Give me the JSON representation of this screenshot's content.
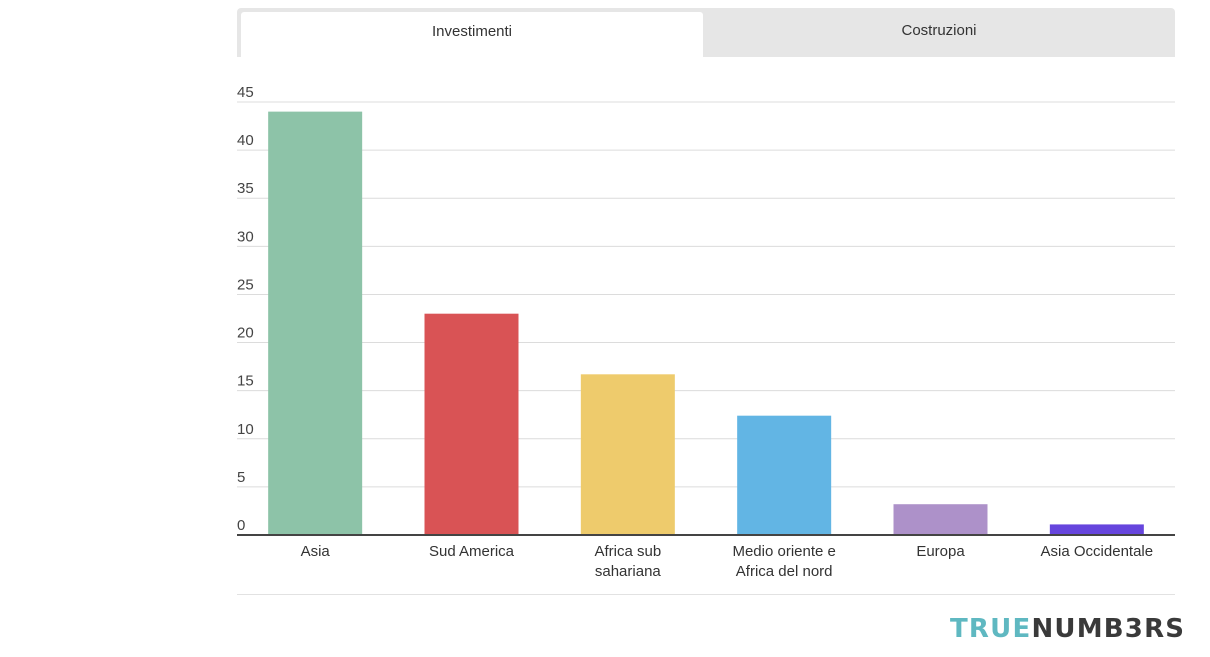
{
  "tabs": [
    {
      "label": "Investimenti",
      "active": true
    },
    {
      "label": "Costruzioni",
      "active": false
    }
  ],
  "logo": {
    "part1": "TRUE",
    "part2": "NUMB3RS"
  },
  "chart_data": {
    "type": "bar",
    "categories": [
      [
        "Asia"
      ],
      [
        "Sud America"
      ],
      [
        "Africa sub",
        "sahariana"
      ],
      [
        "Medio oriente e",
        "Africa del nord"
      ],
      [
        "Europa"
      ],
      [
        "Asia Occidentale"
      ]
    ],
    "values": [
      44,
      23,
      16.7,
      12.4,
      3.2,
      1.1
    ],
    "colors": [
      "#8dc3a8",
      "#d95355",
      "#eecb6c",
      "#62b5e4",
      "#ad91c9",
      "#6645dd"
    ],
    "ylim": [
      0,
      45
    ],
    "yticks": [
      0,
      5,
      10,
      15,
      20,
      25,
      30,
      35,
      40,
      45
    ],
    "grid": true,
    "title": "",
    "xlabel": "",
    "ylabel": ""
  }
}
